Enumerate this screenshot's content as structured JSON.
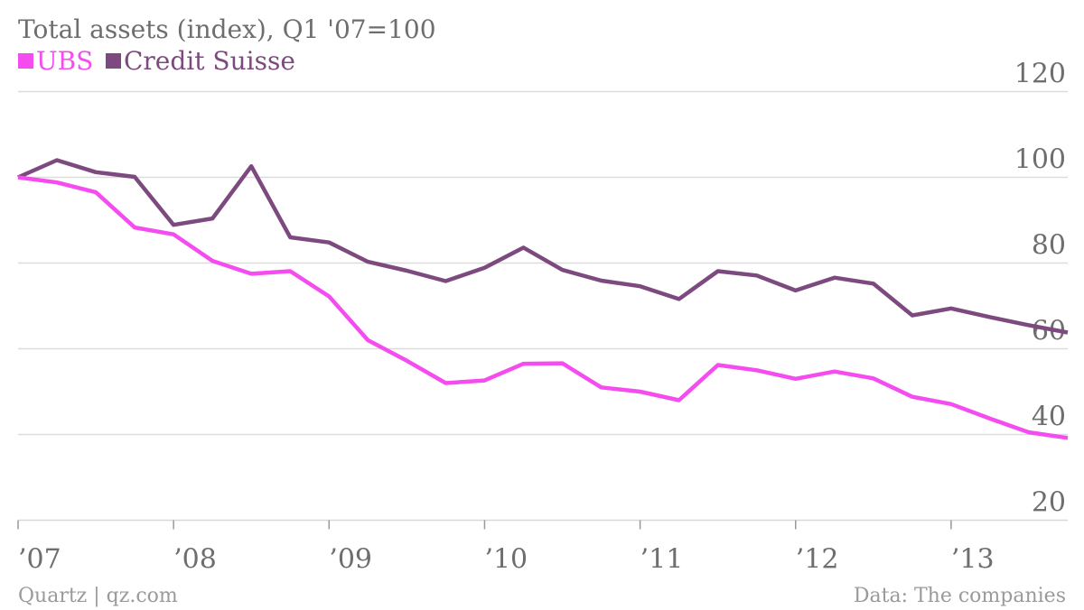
{
  "chart_data": {
    "type": "line",
    "title": "Total assets (index), Q1 '07=100",
    "categories": [
      "Q1 '07",
      "Q2 '07",
      "Q3 '07",
      "Q4 '07",
      "Q1 '08",
      "Q2 '08",
      "Q3 '08",
      "Q4 '08",
      "Q1 '09",
      "Q2 '09",
      "Q3 '09",
      "Q4 '09",
      "Q1 '10",
      "Q2 '10",
      "Q3 '10",
      "Q4 '10",
      "Q1 '11",
      "Q2 '11",
      "Q3 '11",
      "Q4 '11",
      "Q1 '12",
      "Q2 '12",
      "Q3 '12",
      "Q4 '12",
      "Q1 '13",
      "Q2 '13",
      "Q3 '13",
      "Q4 '13"
    ],
    "series": [
      {
        "name": "UBS",
        "color": "#f54cf0",
        "values": [
          100,
          98.8,
          96.5,
          88.3,
          86.7,
          80.5,
          77.5,
          78.1,
          72.2,
          62,
          57.2,
          52,
          52.6,
          56.5,
          56.6,
          51,
          50,
          48,
          56.2,
          55,
          53,
          54.7,
          53.1,
          48.8,
          47.1,
          43.7,
          40.5,
          39.2
        ]
      },
      {
        "name": "Credit Suisse",
        "color": "#7d4a7f",
        "values": [
          100,
          104,
          101.2,
          100.1,
          88.9,
          90.4,
          102.6,
          86,
          84.8,
          80.3,
          78.2,
          75.8,
          78.9,
          83.6,
          78.4,
          75.9,
          74.6,
          71.6,
          78.1,
          77.1,
          73.6,
          76.6,
          75.2,
          67.8,
          69.4,
          67.4,
          65.5,
          63.8
        ]
      }
    ],
    "yticks": [
      20,
      40,
      60,
      80,
      100,
      120
    ],
    "xticks": [
      {
        "index": 0,
        "label": "’07"
      },
      {
        "index": 4,
        "label": "’08"
      },
      {
        "index": 8,
        "label": "’09"
      },
      {
        "index": 12,
        "label": "’10"
      },
      {
        "index": 16,
        "label": "’11"
      },
      {
        "index": 20,
        "label": "’12"
      },
      {
        "index": 24,
        "label": "’13"
      }
    ],
    "ylim": [
      20,
      120
    ],
    "grid": true,
    "legend_position": "top-left",
    "gridline_color": "#dcdcdc",
    "axis_color": "#d8d8d8"
  },
  "footer": {
    "source_left": "Quartz | qz.com",
    "source_right": "Data: The companies"
  }
}
